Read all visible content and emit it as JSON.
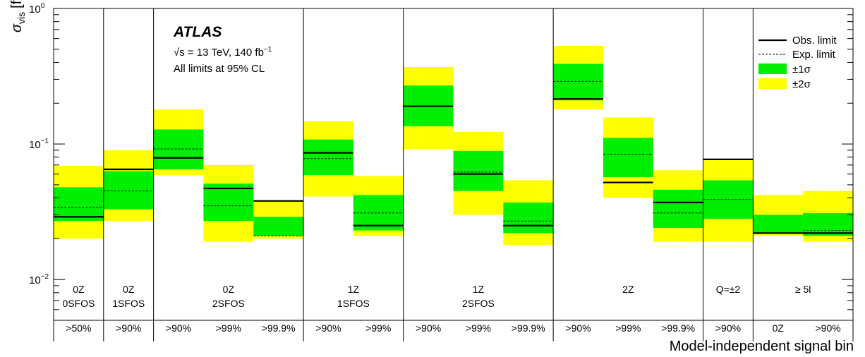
{
  "chart_data": {
    "type": "line",
    "title": "",
    "xlabel": "Model-independent signal bin",
    "ylabel": "σ",
    "ylabel_sub": "vis",
    "ylabel_unit": "[fb]",
    "yscale": "log",
    "ylim": [
      0.005,
      1.0
    ],
    "y_ticks": [
      {
        "value": 0.01,
        "base": "10",
        "exp": "−2"
      },
      {
        "value": 0.1,
        "base": "10",
        "exp": "−1"
      },
      {
        "value": 1.0,
        "base": "10",
        "exp": "0"
      }
    ],
    "experiment": "ATLAS",
    "energy_prefix": "√s",
    "energy_text": " = 13 TeV, 140 fb",
    "lumi_exp": "−1",
    "cl_text": "All limits at 95% CL",
    "legend": {
      "placement": "top-right",
      "entries": [
        {
          "key": "obs",
          "label": "Obs. limit"
        },
        {
          "key": "exp",
          "label": "Exp. limit"
        },
        {
          "key": "s1",
          "label": "±1σ"
        },
        {
          "key": "s2",
          "label": "±2σ"
        }
      ]
    },
    "colors": {
      "sigma1": "#00ee00",
      "sigma2": "#ffff00",
      "observed": "#000000",
      "expected": "#000000"
    },
    "regions": [
      {
        "line1": "0Z",
        "line2": "0SFOS",
        "bins": 1
      },
      {
        "line1": "0Z",
        "line2": "1SFOS",
        "bins": 1
      },
      {
        "line1": "0Z",
        "line2": "2SFOS",
        "bins": 3
      },
      {
        "line1": "1Z",
        "line2": "1SFOS",
        "bins": 2
      },
      {
        "line1": "1Z",
        "line2": "2SFOS",
        "bins": 3
      },
      {
        "line1": "2Z",
        "line2": "",
        "bins": 3
      },
      {
        "line1": "Q=±2",
        "line2": "",
        "bins": 1
      },
      {
        "line1": "≥ 5l",
        "line2": "",
        "bins": 2
      }
    ],
    "categories": [
      ">50%",
      ">90%",
      ">90%",
      ">99%",
      ">99.9%",
      ">90%",
      ">99%",
      ">90%",
      ">99%",
      ">99.9%",
      ">90%",
      ">99%",
      ">99.9%",
      ">90%",
      "0Z",
      ">90%"
    ],
    "series": [
      {
        "name": "Obs. limit",
        "values": [
          0.029,
          0.065,
          0.079,
          0.047,
          0.038,
          0.086,
          0.025,
          0.19,
          0.06,
          0.025,
          0.215,
          0.052,
          0.037,
          0.077,
          0.022,
          0.022
        ]
      },
      {
        "name": "Exp. limit",
        "values": [
          0.034,
          0.045,
          0.092,
          0.035,
          0.021,
          0.078,
          0.031,
          0.19,
          0.062,
          0.027,
          0.29,
          0.084,
          0.031,
          0.039,
          0.022,
          0.023
        ]
      },
      {
        "name": "±1σ",
        "lower": [
          0.027,
          0.033,
          0.065,
          0.027,
          0.021,
          0.059,
          0.023,
          0.135,
          0.045,
          0.022,
          0.21,
          0.057,
          0.024,
          0.028,
          0.022,
          0.021
        ],
        "upper": [
          0.048,
          0.063,
          0.128,
          0.051,
          0.029,
          0.108,
          0.042,
          0.27,
          0.089,
          0.037,
          0.39,
          0.111,
          0.046,
          0.054,
          0.03,
          0.031
        ]
      },
      {
        "name": "±2σ",
        "lower": [
          0.02,
          0.027,
          0.059,
          0.019,
          0.02,
          0.041,
          0.021,
          0.092,
          0.03,
          0.018,
          0.18,
          0.04,
          0.019,
          0.019,
          0.021,
          0.019
        ],
        "upper": [
          0.069,
          0.09,
          0.18,
          0.07,
          0.038,
          0.147,
          0.058,
          0.37,
          0.123,
          0.054,
          0.53,
          0.157,
          0.064,
          0.077,
          0.042,
          0.045
        ]
      }
    ]
  }
}
